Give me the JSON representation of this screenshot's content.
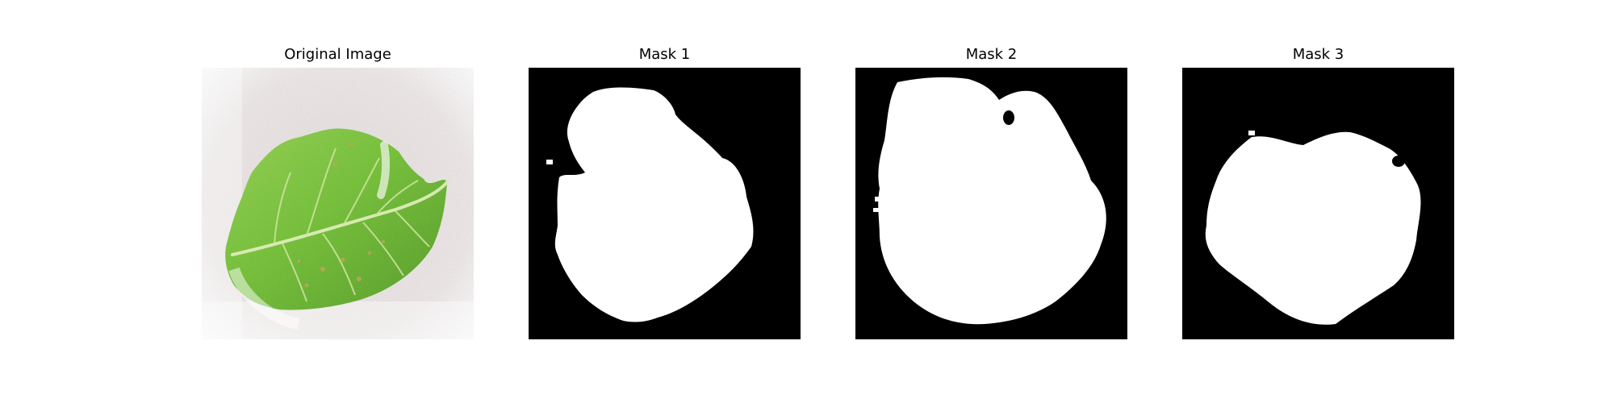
{
  "figure": {
    "panels": [
      {
        "title": "Original Image"
      },
      {
        "title": "Mask 1"
      },
      {
        "title": "Mask 2"
      },
      {
        "title": "Mask 3"
      }
    ]
  },
  "colors": {
    "background": "#ffffff",
    "mask_background": "#000000",
    "mask_foreground": "#ffffff",
    "leaf_green": "#6fbf2f",
    "leaf_dark": "#4f9a1e",
    "leaf_vein": "#d8eab0",
    "surface": "#ece6e6"
  },
  "icons": []
}
